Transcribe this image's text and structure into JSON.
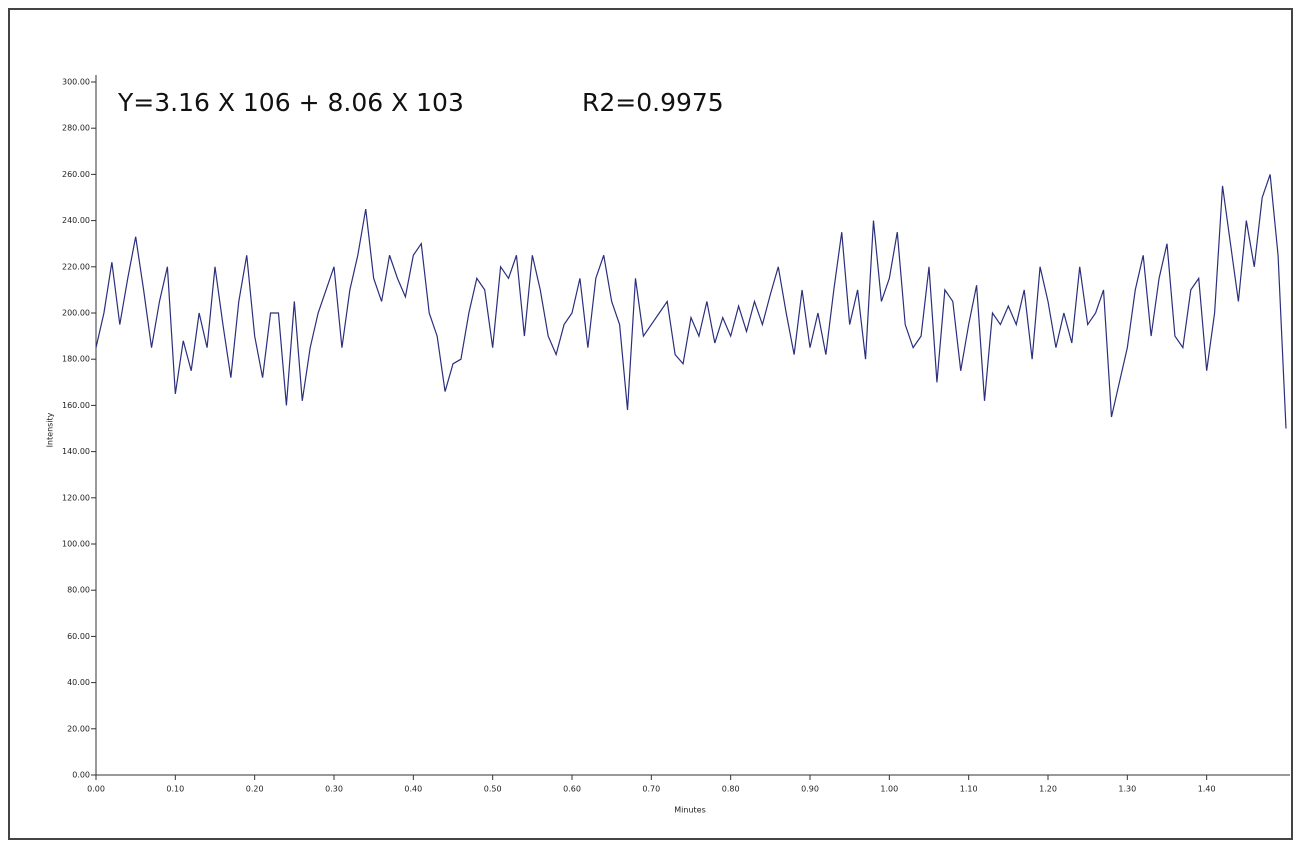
{
  "chart_data": {
    "type": "line",
    "annotations": [
      "Y=3.16 X 106 + 8.06 X 103",
      "R2=0.9975"
    ],
    "x_label": "Minutes",
    "y_label": "Intensity",
    "color": "#2b2f7c",
    "x": [
      0,
      0.01,
      0.02,
      0.03,
      0.04,
      0.05,
      0.06,
      0.07,
      0.08,
      0.09,
      0.1,
      0.11,
      0.12,
      0.13,
      0.14,
      0.15,
      0.16,
      0.17,
      0.18,
      0.19,
      0.2,
      0.21,
      0.22,
      0.23,
      0.24,
      0.25,
      0.26,
      0.27,
      0.28,
      0.29,
      0.3,
      0.31,
      0.32,
      0.33,
      0.34,
      0.35,
      0.36,
      0.37,
      0.38,
      0.39,
      0.4,
      0.41,
      0.42,
      0.43,
      0.44,
      0.45,
      0.46,
      0.47,
      0.48,
      0.49,
      0.5,
      0.51,
      0.52,
      0.53,
      0.54,
      0.55,
      0.56,
      0.57,
      0.58,
      0.59,
      0.6,
      0.61,
      0.62,
      0.63,
      0.64,
      0.65,
      0.66,
      0.67,
      0.68,
      0.69,
      0.7,
      0.71,
      0.72,
      0.73,
      0.74,
      0.75,
      0.76,
      0.77,
      0.78,
      0.79,
      0.8,
      0.81,
      0.82,
      0.83,
      0.84,
      0.85,
      0.86,
      0.87,
      0.88,
      0.89,
      0.9,
      0.91,
      0.92,
      0.93,
      0.94,
      0.95,
      0.96,
      0.97,
      0.98,
      0.99,
      1,
      1.01,
      1.02,
      1.03,
      1.04,
      1.05,
      1.06,
      1.07,
      1.08,
      1.09,
      1.1,
      1.11,
      1.12,
      1.13,
      1.14,
      1.15,
      1.16,
      1.17,
      1.18,
      1.19,
      1.2,
      1.21,
      1.22,
      1.23,
      1.24,
      1.25,
      1.26,
      1.27,
      1.28,
      1.29,
      1.3,
      1.31,
      1.32,
      1.33,
      1.34,
      1.35,
      1.36,
      1.37,
      1.38,
      1.39,
      1.4,
      1.41,
      1.42,
      1.43,
      1.44,
      1.45,
      1.46,
      1.47,
      1.48,
      1.49,
      1.5
    ],
    "values": [
      185,
      200,
      222,
      195,
      215,
      233,
      210,
      185,
      205,
      220,
      165,
      188,
      175,
      200,
      185,
      220,
      195,
      172,
      205,
      225,
      190,
      172,
      200,
      200,
      160,
      205,
      162,
      185,
      200,
      210,
      220,
      185,
      210,
      225,
      245,
      215,
      205,
      225,
      215,
      207,
      225,
      230,
      200,
      190,
      166,
      178,
      180,
      200,
      215,
      210,
      185,
      220,
      215,
      225,
      190,
      225,
      210,
      190,
      182,
      195,
      200,
      215,
      185,
      215,
      225,
      205,
      195,
      158,
      215,
      190,
      195,
      200,
      205,
      182,
      178,
      198,
      190,
      205,
      187,
      198,
      190,
      203,
      192,
      205,
      195,
      208,
      220,
      200,
      182,
      210,
      185,
      200,
      182,
      210,
      235,
      195,
      210,
      180,
      240,
      205,
      215,
      235,
      195,
      185,
      190,
      220,
      170,
      210,
      205,
      175,
      195,
      212,
      162,
      200,
      195,
      203,
      195,
      210,
      180,
      220,
      205,
      185,
      200,
      187,
      220,
      195,
      200,
      210,
      155,
      170,
      185,
      210,
      225,
      190,
      215,
      230,
      190,
      185,
      210,
      215,
      175,
      200,
      255,
      230,
      205,
      240,
      220,
      250,
      260,
      225,
      150
    ],
    "xlim": [
      0,
      1.5
    ],
    "ylim": [
      0,
      300
    ],
    "xticks": [
      {
        "value": 0,
        "label": "0.00"
      },
      {
        "value": 0.1,
        "label": "0.10"
      },
      {
        "value": 0.2,
        "label": "0.20"
      },
      {
        "value": 0.3,
        "label": "0.30"
      },
      {
        "value": 0.4,
        "label": "0.40"
      },
      {
        "value": 0.5,
        "label": "0.50"
      },
      {
        "value": 0.6,
        "label": "0.60"
      },
      {
        "value": 0.7,
        "label": "0.70"
      },
      {
        "value": 0.8,
        "label": "0.80"
      },
      {
        "value": 0.9,
        "label": "0.90"
      },
      {
        "value": 1,
        "label": "1.00"
      },
      {
        "value": 1.1,
        "label": "1.10"
      },
      {
        "value": 1.2,
        "label": "1.20"
      },
      {
        "value": 1.3,
        "label": "1.30"
      },
      {
        "value": 1.4,
        "label": "1.40"
      }
    ],
    "yticks": [
      {
        "value": 0,
        "label": "0.00"
      },
      {
        "value": 20,
        "label": "20.00"
      },
      {
        "value": 40,
        "label": "40.00"
      },
      {
        "value": 60,
        "label": "60.00"
      },
      {
        "value": 80,
        "label": "80.00"
      },
      {
        "value": 100,
        "label": "100.00"
      },
      {
        "value": 120,
        "label": "120.00"
      },
      {
        "value": 140,
        "label": "140.00"
      },
      {
        "value": 160,
        "label": "160.00"
      },
      {
        "value": 180,
        "label": "180.00"
      },
      {
        "value": 200,
        "label": "200.00"
      },
      {
        "value": 220,
        "label": "220.00"
      },
      {
        "value": 240,
        "label": "240.00"
      },
      {
        "value": 260,
        "label": "260.00"
      },
      {
        "value": 280,
        "label": "280.00"
      },
      {
        "value": 300,
        "label": "300.00"
      }
    ]
  }
}
